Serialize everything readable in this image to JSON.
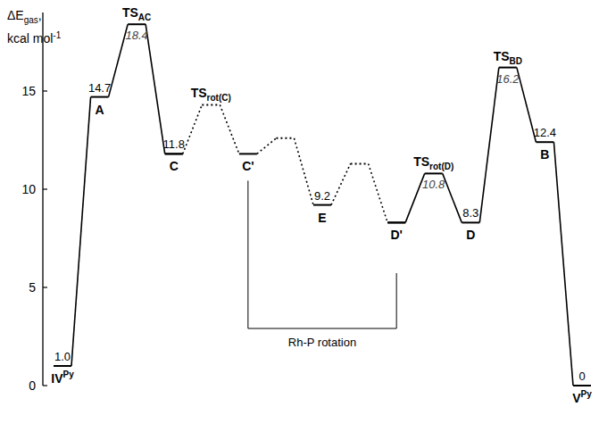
{
  "chart_data": {
    "type": "energy_profile",
    "y_label": {
      "text": "ΔE",
      "sub": "gas",
      "end": ","
    },
    "y_label_unit": {
      "text": "kcal mol",
      "sup": "-1"
    },
    "categories": [
      "IV",
      "A",
      "TS",
      "C",
      "TS",
      "C'",
      null,
      "E",
      null,
      "D'",
      "TS",
      "D",
      "TS",
      "B",
      "V"
    ],
    "category_subscripts": [
      null,
      null,
      "AC",
      null,
      "rot(C)",
      null,
      null,
      null,
      null,
      null,
      "rot(D)",
      null,
      "BD",
      null,
      null
    ],
    "category_superscripts": [
      "Py",
      null,
      null,
      null,
      null,
      null,
      null,
      null,
      null,
      null,
      null,
      null,
      null,
      null,
      "Py"
    ],
    "series": [
      {
        "line_style": "solid",
        "color": "#000000",
        "values": [
          1.0,
          14.7,
          18.4,
          11.8,
          null,
          null,
          null,
          null,
          null,
          8.3,
          10.8,
          8.3,
          16.2,
          12.4,
          0
        ],
        "value_labels": [
          "1.0",
          "14.7",
          "18.4",
          "11.8",
          null,
          null,
          null,
          null,
          null,
          null,
          "10.8",
          "8.3",
          "16.2",
          "12.4",
          "0"
        ]
      },
      {
        "line_style": "dotted",
        "color": "#000000",
        "values": [
          null,
          null,
          null,
          11.8,
          14.3,
          11.8,
          12.6,
          9.2,
          11.3,
          8.3,
          null,
          null,
          null,
          null,
          null
        ],
        "value_labels": [
          null,
          null,
          null,
          null,
          null,
          null,
          null,
          "9.2",
          null,
          null,
          null,
          null,
          null,
          null,
          null
        ]
      }
    ],
    "annotations": [
      {
        "text": "Rh-P rotation",
        "start": 5,
        "end": 9
      }
    ],
    "ylim": [
      0,
      19
    ],
    "yticks": [
      0,
      5,
      10,
      15
    ],
    "data_labels": true,
    "grid": false
  }
}
